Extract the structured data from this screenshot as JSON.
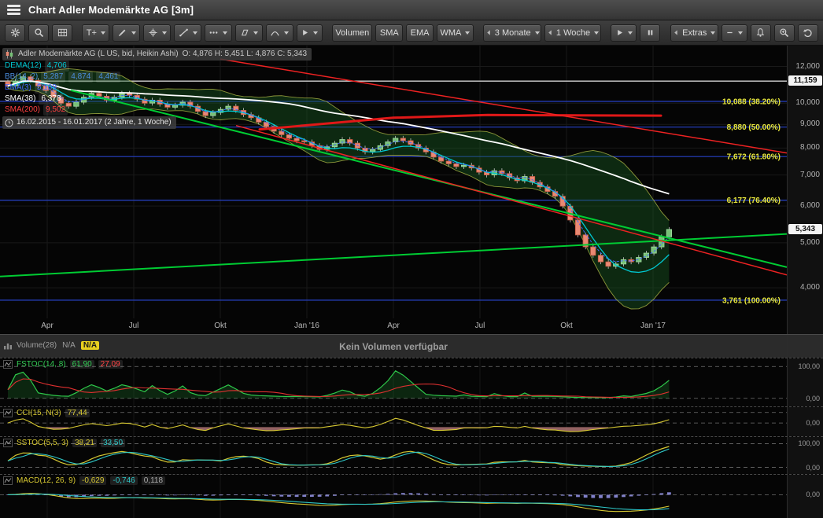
{
  "window": {
    "title": "Chart Adler Modemärkte AG [3m]"
  },
  "toolbar": {
    "items": [
      {
        "name": "settings",
        "icon": "gear"
      },
      {
        "name": "zoom-mode",
        "icon": "magnifier"
      },
      {
        "name": "chart-type",
        "icon": "grid"
      },
      {
        "name": "sep1",
        "sep": true
      },
      {
        "name": "text-tool",
        "label": "T+",
        "caret": true
      },
      {
        "name": "draw-tool",
        "icon": "pencil",
        "caret": true
      },
      {
        "name": "crosshair-tool",
        "icon": "crosshair",
        "caret": true
      },
      {
        "name": "trendline-tool",
        "icon": "trendline",
        "caret": true
      },
      {
        "name": "more-tools",
        "icon": "dots",
        "caret": true
      },
      {
        "name": "shape-tool",
        "icon": "parallelogram",
        "caret": true
      },
      {
        "name": "arc-tool",
        "icon": "arc",
        "caret": true
      },
      {
        "name": "pointer-tool",
        "icon": "play",
        "caret": true
      },
      {
        "name": "sep2",
        "sep": true
      },
      {
        "name": "volumen",
        "label": "Volumen"
      },
      {
        "name": "sma",
        "label": "SMA"
      },
      {
        "name": "ema",
        "label": "EMA"
      },
      {
        "name": "wma",
        "label": "WMA",
        "caret": true
      },
      {
        "name": "sep3",
        "sep": true
      },
      {
        "name": "range",
        "label": "3 Monate",
        "chevron": true,
        "caret": true
      },
      {
        "name": "interval",
        "label": "1 Woche",
        "chevron": true,
        "caret": true
      },
      {
        "name": "sep4",
        "sep": true
      },
      {
        "name": "replay-play",
        "icon": "play",
        "caret": true
      },
      {
        "name": "replay-pause",
        "icon": "pause"
      },
      {
        "name": "sep5",
        "sep": true
      },
      {
        "name": "extras",
        "label": "Extras",
        "chevron": true,
        "caret": true
      },
      {
        "name": "collapse",
        "icon": "minus",
        "caret": true
      },
      {
        "name": "alarm",
        "icon": "bell"
      },
      {
        "name": "zoom-in",
        "icon": "zoom-in"
      },
      {
        "name": "undo",
        "icon": "undo"
      }
    ]
  },
  "legend": {
    "instrument": "Adler Modemärkte AG (L US, bid, Heikin Ashi)",
    "ohlc_text": "O: 4,876  H: 5,451  L: 4,876  C: 5,343",
    "lines": [
      {
        "name": "DEMA(12)",
        "values": [
          "4,706"
        ],
        "color": "#00c8d2"
      },
      {
        "name": "BB(14, 2)",
        "values": [
          "5,287",
          "4,874",
          "4,461"
        ],
        "color": "#4a8cdc"
      },
      {
        "name": "EMA(3)",
        "values": [
          "5,109"
        ],
        "color": "#4466ff"
      },
      {
        "name": "SMA(38)",
        "values": [
          "6,378"
        ],
        "color": "#ffffff"
      },
      {
        "name": "SMA(200)",
        "values": [
          "9,502"
        ],
        "color": "#ff4040"
      }
    ],
    "range_text": "16.02.2015 - 16.01.2017  (2 Jahre, 1 Woche)"
  },
  "colors": {
    "up": "#76c176",
    "up_stroke": "#a2dca2",
    "down": "#e98973",
    "down_stroke": "#c85a43",
    "dema": "#00c8d2",
    "ema": "#4466ff",
    "bb_fill": "rgba(25,95,35,0.40)",
    "bb_edge": "#b9c24a",
    "sma38": "#ffffff",
    "sma200": "#e01818",
    "fib_line": "#2742c8",
    "fib_label": "#e8e83c"
  },
  "chart_data": {
    "type": "candlestick",
    "instrument": "Adler Modemärkte AG",
    "interval": "1 Woche",
    "date_range": "16.02.2015 - 16.01.2017",
    "scale": "log",
    "last_price": {
      "value": 5343,
      "label": "5,343"
    },
    "closes": [
      10900,
      11150,
      11400,
      11200,
      10900,
      10650,
      10300,
      10000,
      9850,
      10050,
      10300,
      10500,
      10350,
      10150,
      10300,
      10500,
      10400,
      10200,
      10000,
      10150,
      9950,
      9800,
      9900,
      10050,
      9850,
      9600,
      9400,
      9550,
      9700,
      9850,
      9650,
      9450,
      9300,
      9100,
      8900,
      8700,
      8550,
      8400,
      8300,
      8250,
      8100,
      7950,
      8050,
      8200,
      8350,
      8200,
      8000,
      7850,
      7950,
      8100,
      8250,
      8400,
      8300,
      8150,
      8000,
      7850,
      7650,
      7500,
      7400,
      7300,
      7350,
      7250,
      7100,
      7000,
      7150,
      7050,
      6900,
      6800,
      6950,
      6750,
      6600,
      6450,
      6300,
      6000,
      5600,
      5200,
      4900,
      4700,
      4550,
      4450,
      4500,
      4600,
      4550,
      4650,
      4750,
      4900,
      5150,
      5343
    ],
    "y_axis": [
      {
        "price": 12000,
        "label": "12,000"
      },
      {
        "price": 10000,
        "label": "10,000"
      },
      {
        "price": 9000,
        "label": "9,000"
      },
      {
        "price": 8000,
        "label": "8,000"
      },
      {
        "price": 7000,
        "label": "7,000"
      },
      {
        "price": 6000,
        "label": "6,000"
      },
      {
        "price": 5000,
        "label": "5,000"
      },
      {
        "price": 4000,
        "label": "4,000"
      }
    ],
    "x_ticks": [
      {
        "label": "Apr",
        "f": 0.06
      },
      {
        "label": "Jul",
        "f": 0.17
      },
      {
        "label": "Okt",
        "f": 0.28
      },
      {
        "label": "Jan '16",
        "f": 0.39
      },
      {
        "label": "Apr",
        "f": 0.5
      },
      {
        "label": "Jul",
        "f": 0.61
      },
      {
        "label": "Okt",
        "f": 0.72
      },
      {
        "label": "Jan '17",
        "f": 0.83
      }
    ],
    "fibonacci": [
      {
        "price": 11159,
        "label": "11,159",
        "line": "white",
        "axis_marker": true
      },
      {
        "price": 10088,
        "label": "10,088 (38.20%)",
        "line": "blue"
      },
      {
        "price": 8880,
        "label": "8,880 (50.00%)",
        "line": "blue"
      },
      {
        "price": 7672,
        "label": "7,672 (61.80%)",
        "line": "blue"
      },
      {
        "price": 6177,
        "label": "6,177 (76.40%)",
        "line": "blue"
      },
      {
        "price": 3761,
        "label": "3,761 (100.00%)",
        "line": "blue"
      }
    ],
    "price_markers": [
      {
        "price": 11159,
        "label": "11,159"
      },
      {
        "price": 5343,
        "label": "5,343"
      }
    ],
    "trendlines": [
      {
        "color": "#00cc33",
        "width": 2,
        "from": [
          0.09,
          10660
        ],
        "to": [
          1.0,
          4430
        ]
      },
      {
        "color": "#00cc33",
        "width": 2,
        "from": [
          0.0,
          4230
        ],
        "to": [
          1.0,
          5224
        ]
      },
      {
        "color": "#ee2222",
        "width": 1.5,
        "from": [
          0.28,
          12450
        ],
        "to": [
          1.0,
          7810
        ]
      },
      {
        "color": "#ee2222",
        "width": 1.5,
        "from": [
          0.3,
          8950
        ],
        "to": [
          1.0,
          4263
        ]
      }
    ],
    "sma200_path": [
      [
        0.33,
        8780
      ],
      [
        0.5,
        9300
      ],
      [
        0.62,
        9430
      ],
      [
        0.84,
        9400
      ]
    ]
  },
  "panels": {
    "volume": {
      "title": "Volume(28)",
      "value1": "N/A",
      "value2": "N/A",
      "message": "Kein Volumen verfügbar"
    },
    "fstoc": {
      "title": "FSTOC(14, 8)",
      "title_color": "#33cc55",
      "values": [
        {
          "text": "61,90",
          "color": "#33cc55"
        },
        {
          "text": "27,09",
          "color": "#ff4444"
        }
      ],
      "axis_labels": [
        {
          "v": 100,
          "text": "100,00"
        },
        {
          "v": 0,
          "text": "0,00"
        }
      ]
    },
    "cci": {
      "title": "CCI(15, N(3)",
      "title_color": "#d6c832",
      "values": [
        {
          "text": "77,44",
          "color": "#d6c832"
        }
      ],
      "axis_labels": [
        {
          "v": 0,
          "text": "0,00"
        }
      ]
    },
    "sstoc": {
      "title": "SSTOC(5,5, 3)",
      "title_color": "#d6c832",
      "values": [
        {
          "text": "38,21",
          "color": "#d6c832"
        },
        {
          "text": "33,50",
          "color": "#2ec8c8"
        }
      ],
      "axis_labels": [
        {
          "v": 100,
          "text": "100,00"
        },
        {
          "v": 0,
          "text": "0,00"
        }
      ]
    },
    "macd": {
      "title": "MACD(12, 26, 9)",
      "title_color": "#d6c832",
      "values": [
        {
          "text": "-0,629",
          "color": "#d6c832"
        },
        {
          "text": "-0,746",
          "color": "#2ec8c8"
        },
        {
          "text": "0,118",
          "color": "#aaaaaa"
        }
      ],
      "axis_labels": [
        {
          "v": 0,
          "text": "0,00"
        }
      ]
    }
  }
}
